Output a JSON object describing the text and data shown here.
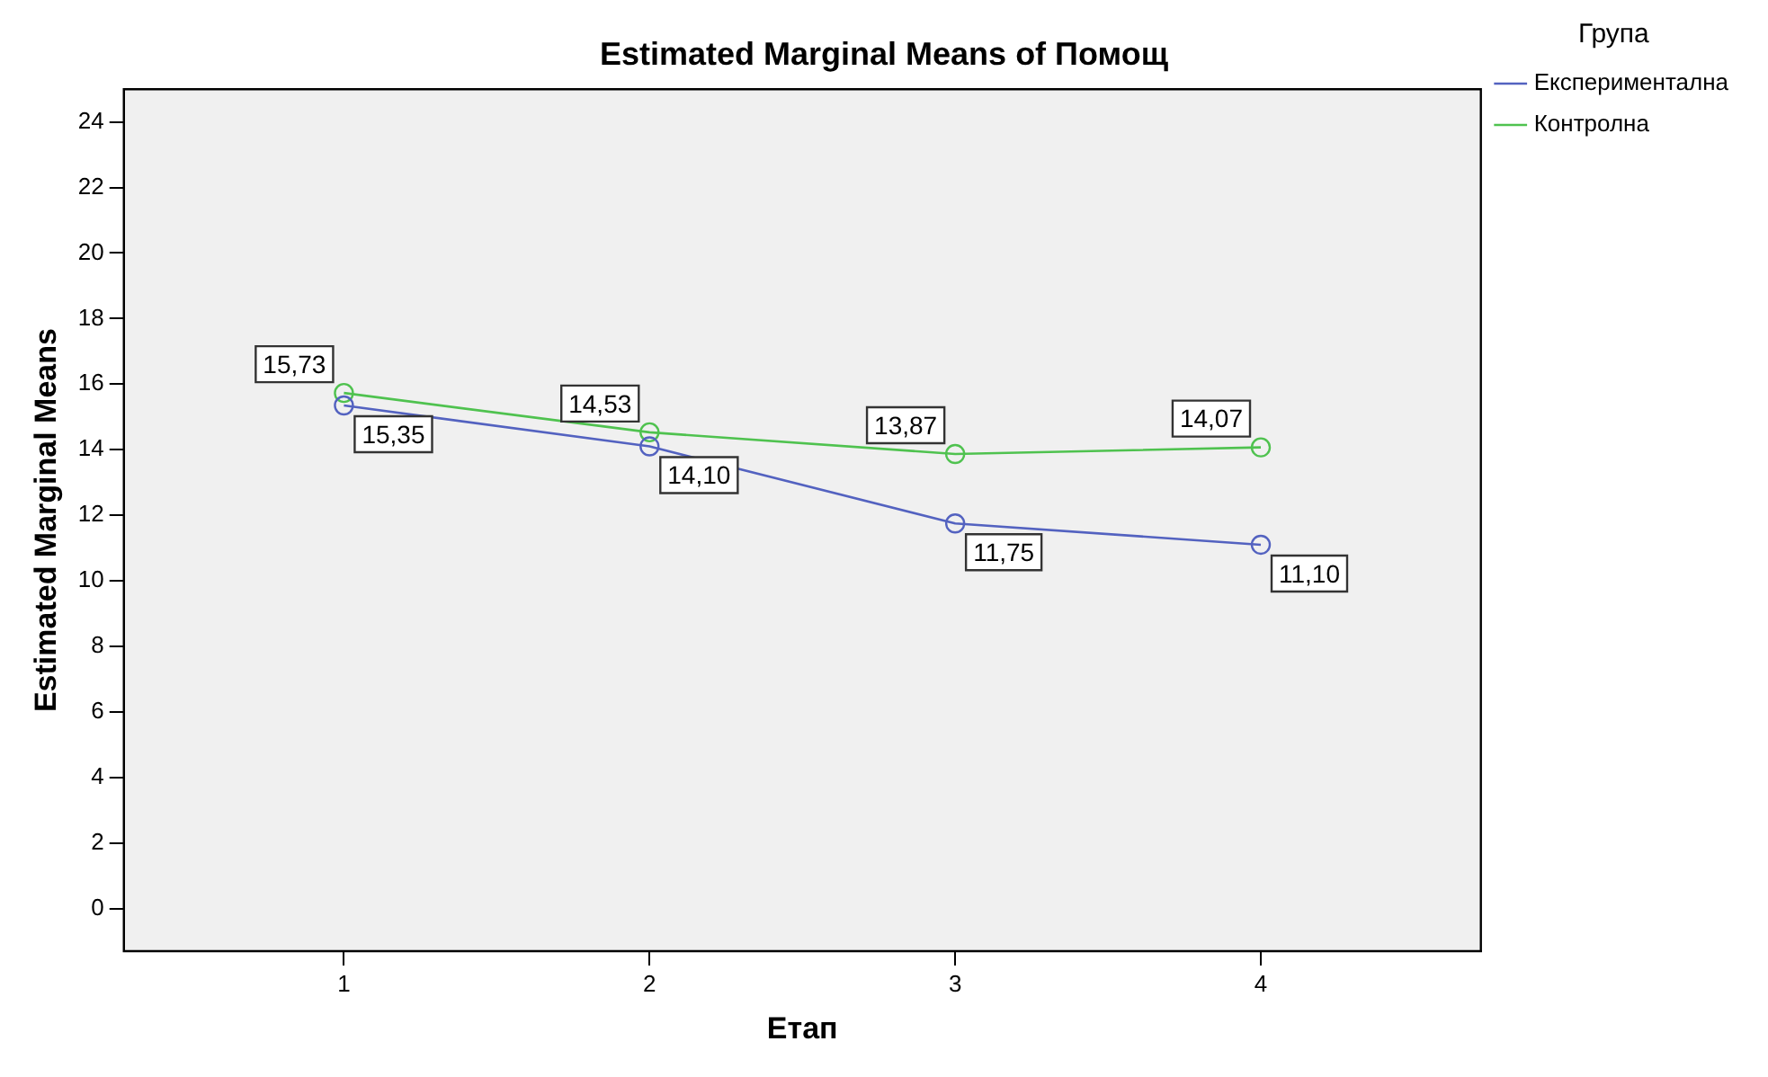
{
  "chart_data": {
    "type": "line",
    "title": "Estimated Marginal Means of Помощ",
    "xlabel": "Етап",
    "ylabel": "Estimated Marginal Means",
    "legend_title": "Група",
    "x": [
      1,
      2,
      3,
      4
    ],
    "series": [
      {
        "name": "Експериментална",
        "color": "#5362c0",
        "values": [
          15.35,
          14.1,
          11.75,
          11.1
        ],
        "value_labels": [
          "15,35",
          "14,10",
          "11,75",
          "11,10"
        ]
      },
      {
        "name": "Контролна",
        "color": "#4fc24f",
        "values": [
          15.73,
          14.53,
          13.87,
          14.07
        ],
        "value_labels": [
          "15,73",
          "14,53",
          "13,87",
          "14,07"
        ]
      }
    ],
    "xlim": [
      0.28,
      4.72
    ],
    "xticks": [
      1,
      2,
      3,
      4
    ],
    "ylim": [
      -1.3,
      25
    ],
    "yticks": [
      0,
      2,
      4,
      6,
      8,
      10,
      12,
      14,
      16,
      18,
      20,
      22,
      24
    ],
    "grid": false,
    "legend": "top right",
    "marker": "circle",
    "line_style": "solid"
  }
}
